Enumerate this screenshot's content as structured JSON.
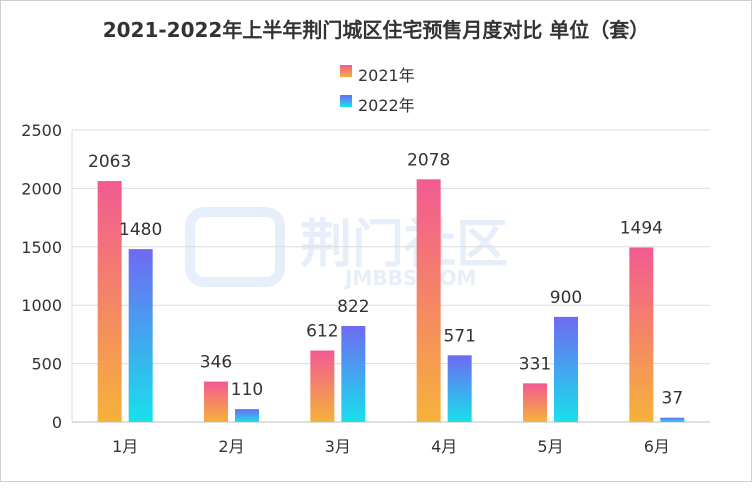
{
  "chart_data": {
    "type": "bar",
    "title": "2021-2022年上半年荆门城区住宅预售月度对比 单位（套）",
    "categories": [
      "1月",
      "2月",
      "3月",
      "4月",
      "5月",
      "6月"
    ],
    "series": [
      {
        "name": "2021年",
        "values": [
          2063,
          346,
          612,
          2078,
          331,
          1494
        ]
      },
      {
        "name": "2022年",
        "values": [
          1480,
          110,
          822,
          571,
          900,
          37
        ]
      }
    ],
    "yticks": [
      0,
      500,
      1000,
      1500,
      2000,
      2500
    ],
    "ylim": [
      0,
      2500
    ],
    "grid": true,
    "legend": "top-center",
    "colors": {
      "series_2021": [
        "#f25a92",
        "#f6b23a"
      ],
      "series_2022": [
        "#6e6af2",
        "#18e0ec"
      ]
    }
  },
  "watermark": {
    "text": "荆门社区",
    "sub": "JMBBS.COM"
  }
}
